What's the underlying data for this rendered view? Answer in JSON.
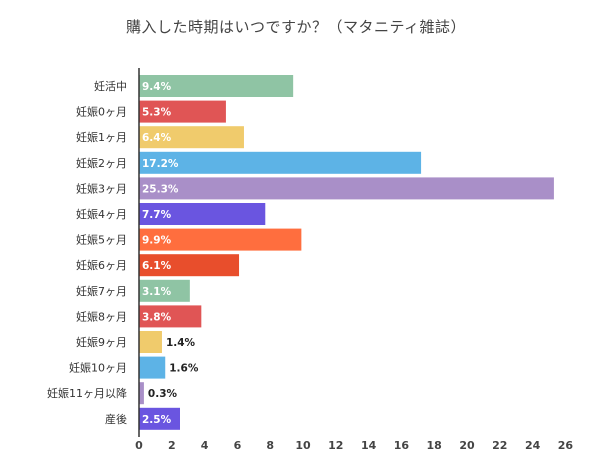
{
  "chart_data": {
    "type": "bar",
    "orientation": "horizontal",
    "title": "購入した時期はいつですか？（マタニティ雑誌）",
    "xlim": [
      0,
      26
    ],
    "xticks": [
      0,
      2,
      4,
      6,
      8,
      10,
      12,
      14,
      16,
      18,
      20,
      22,
      24,
      26
    ],
    "grid": false,
    "categories": [
      "妊活中",
      "妊娠0ヶ月",
      "妊娠1ヶ月",
      "妊娠2ヶ月",
      "妊娠3ヶ月",
      "妊娠4ヶ月",
      "妊娠5ヶ月",
      "妊娠6ヶ月",
      "妊娠7ヶ月",
      "妊娠8ヶ月",
      "妊娠9ヶ月",
      "妊娠10ヶ月",
      "妊娠11ヶ月以降",
      "産後"
    ],
    "values": [
      9.4,
      5.3,
      6.4,
      17.2,
      25.3,
      7.7,
      9.9,
      6.1,
      3.1,
      3.8,
      1.4,
      1.6,
      0.3,
      2.5
    ],
    "data_labels": [
      "9.4%",
      "5.3%",
      "6.4%",
      "17.2%",
      "25.3%",
      "7.7%",
      "9.9%",
      "6.1%",
      "3.1%",
      "3.8%",
      "1.4%",
      "1.6%",
      "0.3%",
      "2.5%"
    ],
    "colors": [
      "#8fc4a4",
      "#e05555",
      "#f0cb6c",
      "#5db3e6",
      "#a98fc8",
      "#6a55e0",
      "#ff6e3e",
      "#e84e2c",
      "#8fc4a4",
      "#e05555",
      "#f0cb6c",
      "#5db3e6",
      "#a98fc8",
      "#6a55e0"
    ]
  }
}
